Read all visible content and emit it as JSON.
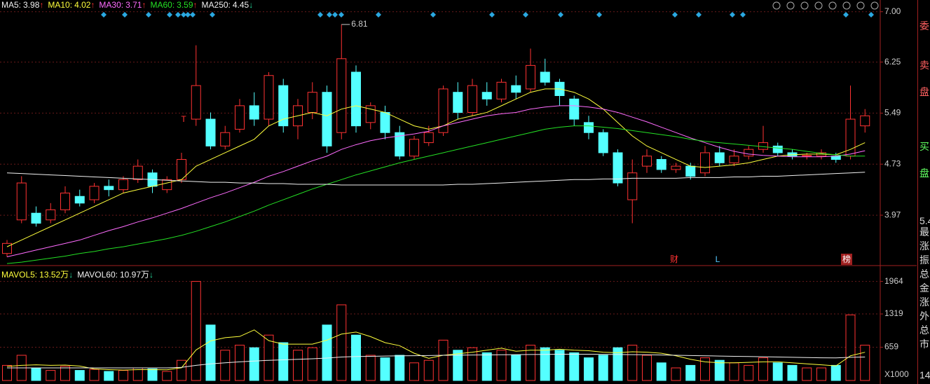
{
  "chart_data": [
    {
      "type": "candlestick",
      "open": [
        3.4,
        3.9,
        4.0,
        3.9,
        4.05,
        4.25,
        4.2,
        4.4,
        4.35,
        4.5,
        4.6,
        4.35,
        4.5,
        5.4,
        5.4,
        5.0,
        5.25,
        5.6,
        5.4,
        5.9,
        5.3,
        5.5,
        5.8,
        5.2,
        6.1,
        5.35,
        5.5,
        5.2,
        4.85,
        5.05,
        5.2,
        5.8,
        5.5,
        5.8,
        5.7,
        5.9,
        5.85,
        6.1,
        5.95,
        5.7,
        5.35,
        5.2,
        4.9,
        4.2,
        4.7,
        4.8,
        4.65,
        4.7,
        4.6,
        4.9,
        4.75,
        4.85,
        4.95,
        5.0,
        4.9,
        4.85,
        4.85,
        4.85,
        4.85,
        5.3
      ],
      "close": [
        3.55,
        4.45,
        3.85,
        4.05,
        4.3,
        4.15,
        4.4,
        4.35,
        4.5,
        4.7,
        4.4,
        4.5,
        4.8,
        5.9,
        5.0,
        5.2,
        5.6,
        5.4,
        6.05,
        5.3,
        5.6,
        5.8,
        5.0,
        6.3,
        5.3,
        5.6,
        5.2,
        4.85,
        5.1,
        5.2,
        5.85,
        5.5,
        5.9,
        5.7,
        5.95,
        5.8,
        6.2,
        5.95,
        5.75,
        5.4,
        5.2,
        4.9,
        4.45,
        4.6,
        4.85,
        4.65,
        4.7,
        4.55,
        4.9,
        4.75,
        4.85,
        4.95,
        5.05,
        4.9,
        4.85,
        4.86,
        4.9,
        4.8,
        5.4,
        5.45
      ],
      "high": [
        3.6,
        4.55,
        4.1,
        4.15,
        4.4,
        4.35,
        4.45,
        4.5,
        4.55,
        4.8,
        4.65,
        4.55,
        4.9,
        6.5,
        5.5,
        5.3,
        5.7,
        5.8,
        6.1,
        6.0,
        5.7,
        5.95,
        5.9,
        6.81,
        6.2,
        5.65,
        5.6,
        5.3,
        5.15,
        5.3,
        5.9,
        5.95,
        6.0,
        5.95,
        6.0,
        6.05,
        6.45,
        6.3,
        6.0,
        5.75,
        5.45,
        5.25,
        4.95,
        4.8,
        4.95,
        4.85,
        4.75,
        4.75,
        5.0,
        5.0,
        4.95,
        5.0,
        5.3,
        5.05,
        4.95,
        4.9,
        4.95,
        4.9,
        5.9,
        5.55
      ],
      "low": [
        3.35,
        3.85,
        3.8,
        3.85,
        4.0,
        4.1,
        4.15,
        4.25,
        4.3,
        4.45,
        4.3,
        4.3,
        4.45,
        5.3,
        4.95,
        4.95,
        5.2,
        5.3,
        5.3,
        5.2,
        5.1,
        5.4,
        4.9,
        5.1,
        5.2,
        5.25,
        5.1,
        4.8,
        4.8,
        5.0,
        5.15,
        5.4,
        5.45,
        5.6,
        5.65,
        5.7,
        5.8,
        5.9,
        5.6,
        5.3,
        5.1,
        4.85,
        4.4,
        3.85,
        4.6,
        4.6,
        4.6,
        4.5,
        4.55,
        4.7,
        4.7,
        4.8,
        4.9,
        4.85,
        4.8,
        4.8,
        4.8,
        4.75,
        4.8,
        5.2
      ],
      "up_color": "#ff3232",
      "down_color": "#54ffff",
      "ylim": [
        3.23,
        7.07
      ],
      "yticks": [
        {
          "value": 7,
          "label": "7.00"
        },
        6.25,
        5.49,
        4.73,
        3.97
      ],
      "grid": true,
      "series": [
        {
          "color": "#ffff3c",
          "values": [
            3.5,
            3.6,
            3.7,
            3.8,
            3.9,
            4.0,
            4.1,
            4.2,
            4.3,
            4.35,
            4.4,
            4.45,
            4.5,
            4.7,
            4.8,
            4.9,
            5.0,
            5.1,
            5.3,
            5.4,
            5.45,
            5.5,
            5.45,
            5.55,
            5.6,
            5.55,
            5.5,
            5.4,
            5.3,
            5.25,
            5.3,
            5.4,
            5.45,
            5.5,
            5.6,
            5.7,
            5.8,
            5.85,
            5.85,
            5.8,
            5.7,
            5.55,
            5.35,
            5.15,
            5.0,
            4.9,
            4.8,
            4.7,
            4.68,
            4.7,
            4.72,
            4.75,
            4.8,
            4.85,
            4.87,
            4.88,
            4.88,
            4.87,
            4.95,
            5.05
          ]
        },
        {
          "color": "#ff6cff",
          "values": [
            3.35,
            3.4,
            3.45,
            3.5,
            3.55,
            3.6,
            3.67,
            3.74,
            3.8,
            3.87,
            3.93,
            4.0,
            4.07,
            4.15,
            4.23,
            4.3,
            4.38,
            4.46,
            4.55,
            4.62,
            4.7,
            4.78,
            4.85,
            4.95,
            5.02,
            5.08,
            5.12,
            5.15,
            5.18,
            5.22,
            5.3,
            5.35,
            5.4,
            5.45,
            5.48,
            5.5,
            5.55,
            5.58,
            5.6,
            5.6,
            5.58,
            5.55,
            5.5,
            5.43,
            5.36,
            5.28,
            5.2,
            5.12,
            5.05,
            4.98,
            4.92,
            4.88,
            4.86,
            4.85,
            4.84,
            4.84,
            4.84,
            4.85,
            4.88,
            4.93
          ]
        },
        {
          "color": "#24e024",
          "values": [
            3.25,
            3.27,
            3.3,
            3.33,
            3.36,
            3.4,
            3.43,
            3.47,
            3.5,
            3.54,
            3.58,
            3.62,
            3.67,
            3.73,
            3.8,
            3.87,
            3.95,
            4.03,
            4.12,
            4.2,
            4.28,
            4.36,
            4.43,
            4.5,
            4.57,
            4.63,
            4.69,
            4.75,
            4.8,
            4.85,
            4.9,
            4.95,
            5.0,
            5.05,
            5.1,
            5.15,
            5.2,
            5.25,
            5.28,
            5.3,
            5.3,
            5.28,
            5.26,
            5.23,
            5.2,
            5.17,
            5.14,
            5.1,
            5.07,
            5.05,
            5.03,
            5.01,
            4.99,
            4.97,
            4.95,
            4.92,
            4.89,
            4.87,
            4.85,
            4.85
          ]
        },
        {
          "color": "#f0f0f0",
          "values": [
            4.6,
            4.59,
            4.58,
            4.57,
            4.56,
            4.55,
            4.54,
            4.53,
            4.52,
            4.51,
            4.5,
            4.49,
            4.48,
            4.47,
            4.46,
            4.46,
            4.45,
            4.45,
            4.44,
            4.44,
            4.43,
            4.43,
            4.43,
            4.42,
            4.42,
            4.42,
            4.42,
            4.42,
            4.42,
            4.42,
            4.42,
            4.43,
            4.43,
            4.44,
            4.45,
            4.46,
            4.47,
            4.48,
            4.49,
            4.5,
            4.5,
            4.51,
            4.51,
            4.52,
            4.52,
            4.52,
            4.52,
            4.53,
            4.53,
            4.53,
            4.54,
            4.54,
            4.55,
            4.55,
            4.56,
            4.57,
            4.58,
            4.59,
            4.6,
            4.61
          ]
        }
      ],
      "legend": [
        {
          "name": "MA5:",
          "value": 3.98,
          "arrow": "↑",
          "color": "#f0f0f0"
        },
        {
          "name": "MA10:",
          "value": 4.02,
          "arrow": "↑",
          "color": "#ffff3c"
        },
        {
          "name": "MA30:",
          "value": 3.71,
          "arrow": "↑",
          "color": "#ff6cff"
        },
        {
          "name": "MA60:",
          "value": 3.59,
          "arrow": "↑",
          "color": "#24e024"
        },
        {
          "name": "MA250:",
          "value": 4.45,
          "arrow": "↓",
          "color": "#a0e0ff"
        },
        {
          "name": "MA250:",
          "value": 4.45,
          "arrow": "↓",
          "color": "#f0f0f0"
        }
      ],
      "events": [
        "T",
        "财",
        "L",
        "榜"
      ]
    },
    {
      "type": "bar",
      "values": [
        300,
        500,
        250,
        200,
        280,
        200,
        220,
        180,
        200,
        250,
        230,
        180,
        400,
        1964,
        1100,
        600,
        700,
        650,
        900,
        750,
        600,
        650,
        1100,
        1500,
        900,
        500,
        450,
        500,
        350,
        400,
        800,
        600,
        650,
        550,
        600,
        500,
        700,
        650,
        600,
        550,
        450,
        500,
        650,
        700,
        500,
        350,
        250,
        300,
        450,
        400,
        350,
        300,
        450,
        350,
        300,
        250,
        250,
        300,
        1300,
        700
      ],
      "ylim": [
        0,
        2250
      ],
      "yticks": [
        659,
        1319,
        1964
      ],
      "unit_label": "X1000",
      "series": [
        {
          "color": "#ffff3c",
          "values": [
            280,
            300,
            310,
            300,
            306,
            286,
            230,
            216,
            206,
            216,
            216,
            212,
            252,
            605,
            785,
            849,
            873,
            1003,
            790,
            720,
            720,
            720,
            800,
            920,
            960,
            870,
            750,
            690,
            540,
            440,
            500,
            530,
            560,
            600,
            640,
            580,
            600,
            600,
            620,
            600,
            590,
            560,
            550,
            570,
            560,
            540,
            490,
            420,
            370,
            350,
            350,
            360,
            370,
            370,
            350,
            330,
            310,
            290,
            490,
            560
          ]
        },
        {
          "color": "#f0f0f0",
          "values": [
            250,
            250,
            250,
            250,
            250,
            250,
            250,
            250,
            250,
            250,
            250,
            250,
            260,
            300,
            330,
            350,
            370,
            385,
            400,
            410,
            420,
            430,
            445,
            465,
            475,
            480,
            485,
            490,
            492,
            495,
            500,
            502,
            505,
            507,
            510,
            512,
            515,
            518,
            520,
            520,
            520,
            518,
            515,
            512,
            510,
            505,
            500,
            495,
            490,
            485,
            480,
            475,
            470,
            465,
            460,
            455,
            450,
            448,
            460,
            465
          ]
        }
      ],
      "legend": [
        {
          "name": "MAVOL5:",
          "value": 13.52,
          "unit": "万",
          "arrow": "↓",
          "color": "#ffff3c"
        },
        {
          "name": "MAVOL60:",
          "value": 10.97,
          "unit": "万",
          "arrow": "↓",
          "color": "#f0f0f0"
        }
      ]
    }
  ],
  "sidebar": [
    "委",
    "卖",
    "盘",
    "买",
    "盘",
    "5.4",
    "最",
    "涨",
    "振",
    "总",
    "金",
    "涨",
    "外",
    "总",
    "市",
    "14"
  ]
}
